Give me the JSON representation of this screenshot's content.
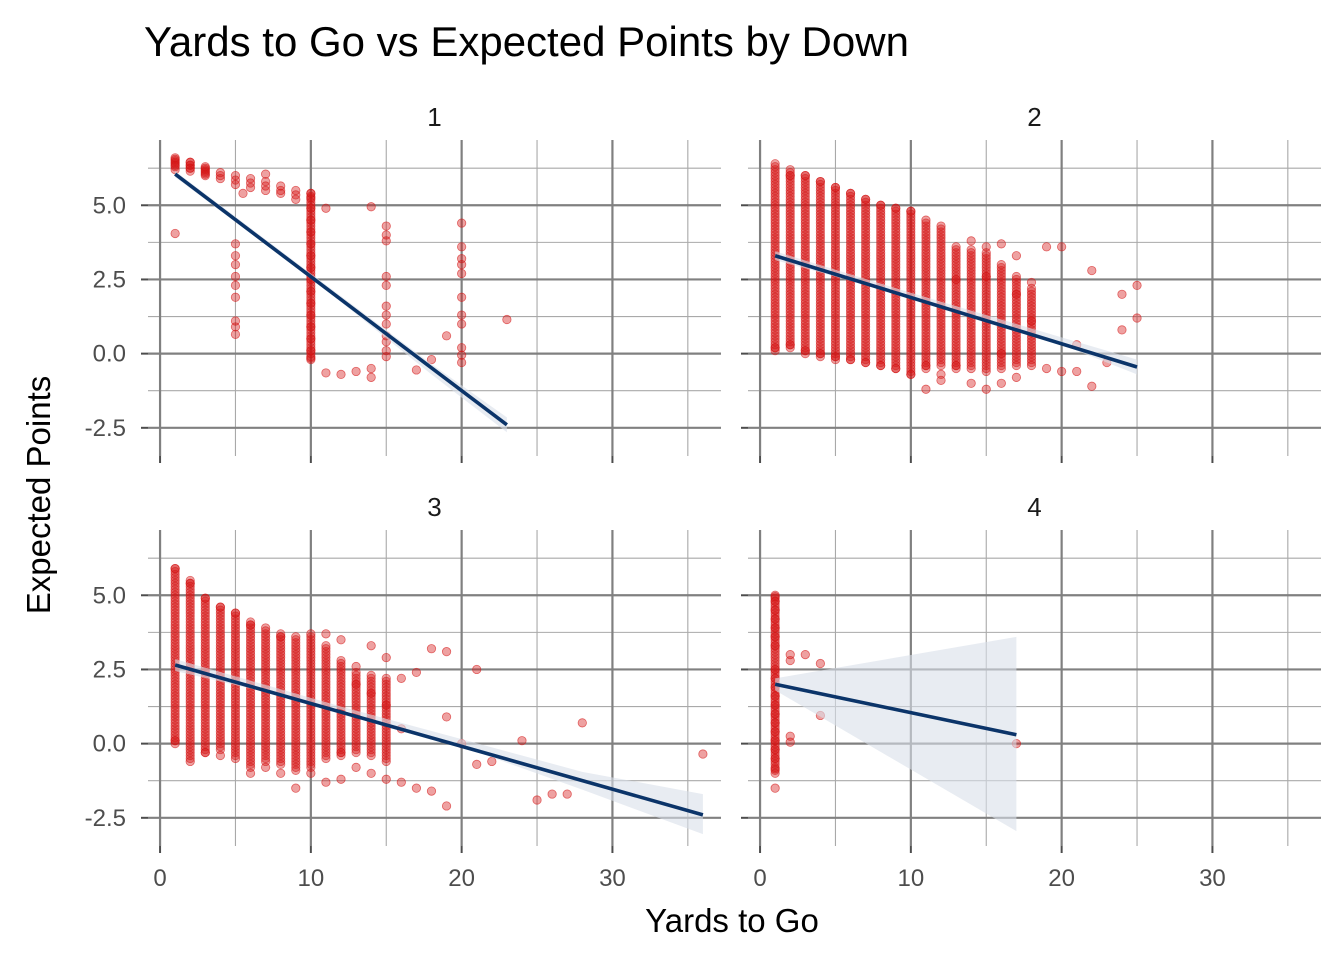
{
  "chart_data": {
    "type": "scatter",
    "title": "Yards to Go vs Expected Points by Down",
    "xlabel": "Yards to Go",
    "ylabel": "Expected Points",
    "xlim": [
      -0.8,
      37.2
    ],
    "ylim": [
      -3.45,
      7.2
    ],
    "x_breaks": [
      0,
      10,
      20,
      30
    ],
    "x_tick_labels": [
      "0",
      "10",
      "20",
      "30"
    ],
    "y_breaks": [
      -2.5,
      0,
      2.5,
      5
    ],
    "y_tick_labels": [
      "-2.5",
      "0.0",
      "2.5",
      "5.0"
    ],
    "grid": true,
    "legend": "none",
    "colors": {
      "points": "#d41414",
      "trend": "#0b3469",
      "ribbon": "#d8dfe9"
    },
    "panels": [
      {
        "label": "1",
        "trend": {
          "x0": 1,
          "y0": 6.05,
          "x1": 23,
          "y1": -2.4
        },
        "ribbon": [
          [
            1,
            5.95,
            6.15
          ],
          [
            10,
            2.55,
            2.7
          ],
          [
            18,
            -0.7,
            -0.35
          ],
          [
            23,
            -2.65,
            -2.15
          ]
        ],
        "points": [
          [
            1,
            4.05
          ],
          [
            1,
            6.55
          ],
          [
            1,
            6.45
          ],
          [
            1,
            6.35
          ],
          [
            2,
            6.45
          ],
          [
            2,
            6.35
          ],
          [
            2,
            6.25
          ],
          [
            3,
            6.25
          ],
          [
            3,
            6.15
          ],
          [
            3,
            6.05
          ],
          [
            4,
            6.1
          ],
          [
            4,
            6.0
          ],
          [
            4,
            5.9
          ],
          [
            5,
            6.0
          ],
          [
            5,
            5.85
          ],
          [
            5,
            5.7
          ],
          [
            6,
            5.9
          ],
          [
            6,
            5.75
          ],
          [
            6,
            5.6
          ],
          [
            7,
            5.8
          ],
          [
            7,
            5.65
          ],
          [
            7,
            5.5
          ],
          [
            8,
            5.65
          ],
          [
            8,
            5.5
          ],
          [
            8,
            5.4
          ],
          [
            9,
            5.5
          ],
          [
            9,
            5.35
          ],
          [
            9,
            5.2
          ],
          [
            10,
            5.4
          ],
          [
            10,
            5.25
          ],
          [
            7,
            6.05
          ],
          [
            5.5,
            5.4
          ],
          [
            5,
            3.7
          ],
          [
            5,
            3.3
          ],
          [
            5,
            3.0
          ],
          [
            5,
            2.6
          ],
          [
            5,
            2.3
          ],
          [
            5,
            1.9
          ],
          [
            5,
            1.1
          ],
          [
            5,
            0.9
          ],
          [
            5,
            0.65
          ],
          [
            10,
            4.9
          ],
          [
            10,
            4.5
          ],
          [
            10,
            4.1
          ],
          [
            10,
            3.7
          ],
          [
            10,
            3.3
          ],
          [
            10,
            2.9
          ],
          [
            10,
            2.5
          ],
          [
            10,
            2.1
          ],
          [
            10,
            1.7
          ],
          [
            10,
            1.3
          ],
          [
            10,
            0.9
          ],
          [
            10,
            0.5
          ],
          [
            10,
            0.1
          ],
          [
            10,
            -0.15
          ],
          [
            11,
            4.9
          ],
          [
            11,
            -0.65
          ],
          [
            12,
            -0.7
          ],
          [
            13,
            -0.6
          ],
          [
            14,
            4.95
          ],
          [
            14,
            -0.5
          ],
          [
            14,
            -0.8
          ],
          [
            15,
            4.3
          ],
          [
            15,
            4.0
          ],
          [
            15,
            3.8
          ],
          [
            15,
            2.6
          ],
          [
            15,
            2.3
          ],
          [
            15,
            1.6
          ],
          [
            15,
            1.3
          ],
          [
            15,
            1.0
          ],
          [
            15,
            0.6
          ],
          [
            15,
            0.4
          ],
          [
            15,
            0.1
          ],
          [
            15,
            -0.1
          ],
          [
            17,
            -0.55
          ],
          [
            18,
            -0.2
          ],
          [
            19,
            0.6
          ],
          [
            20,
            4.4
          ],
          [
            20,
            3.6
          ],
          [
            20,
            3.2
          ],
          [
            20,
            3.0
          ],
          [
            20,
            2.7
          ],
          [
            20,
            1.9
          ],
          [
            20,
            1.3
          ],
          [
            20,
            1.0
          ],
          [
            20,
            0.2
          ],
          [
            20,
            -0.05
          ],
          [
            20,
            -0.3
          ],
          [
            23,
            1.15
          ]
        ],
        "dense_columns": [
          [
            1,
            6.2,
            6.6
          ],
          [
            2,
            6.15,
            6.5
          ],
          [
            3,
            6.0,
            6.35
          ],
          [
            10,
            -0.2,
            5.4
          ]
        ]
      },
      {
        "label": "2",
        "trend": {
          "x0": 1,
          "y0": 3.3,
          "x1": 25,
          "y1": -0.45
        },
        "ribbon": [
          [
            1,
            3.15,
            3.45
          ],
          [
            10,
            1.9,
            2.05
          ],
          [
            20,
            0.3,
            0.55
          ],
          [
            25,
            -0.7,
            -0.2
          ]
        ],
        "points": [
          [
            1,
            0.2
          ],
          [
            2,
            6.0
          ],
          [
            2,
            0.3
          ],
          [
            3,
            6.0
          ],
          [
            3,
            0.1
          ],
          [
            4,
            5.8
          ],
          [
            4,
            0.0
          ],
          [
            5,
            5.6
          ],
          [
            5,
            -0.1
          ],
          [
            6,
            5.4
          ],
          [
            6,
            -0.2
          ],
          [
            7,
            5.2
          ],
          [
            7,
            -0.3
          ],
          [
            8,
            5.0
          ],
          [
            8,
            -0.4
          ],
          [
            9,
            4.9
          ],
          [
            9,
            -0.5
          ],
          [
            10,
            4.8
          ],
          [
            10,
            -0.7
          ],
          [
            11,
            4.5
          ],
          [
            11,
            -0.4
          ],
          [
            12,
            4.3
          ],
          [
            12,
            -0.7
          ],
          [
            13,
            3.6
          ],
          [
            13,
            -0.4
          ],
          [
            14,
            3.8
          ],
          [
            14,
            -0.5
          ],
          [
            15,
            3.6
          ],
          [
            15,
            -1.2
          ],
          [
            16,
            3.7
          ],
          [
            16,
            0.0
          ],
          [
            17,
            3.3
          ],
          [
            17,
            -0.8
          ],
          [
            18,
            2.4
          ],
          [
            18,
            -0.4
          ],
          [
            19,
            3.6
          ],
          [
            19,
            -0.5
          ],
          [
            20,
            3.6
          ],
          [
            20,
            -0.6
          ],
          [
            21,
            0.3
          ],
          [
            21,
            -0.6
          ],
          [
            22,
            2.8
          ],
          [
            22,
            -1.1
          ],
          [
            23,
            -0.3
          ],
          [
            24,
            2.0
          ],
          [
            24,
            0.8
          ],
          [
            25,
            2.3
          ],
          [
            25,
            1.2
          ],
          [
            11,
            -1.2
          ],
          [
            12,
            -0.9
          ],
          [
            13,
            2.5
          ],
          [
            14,
            -1.0
          ],
          [
            15,
            2.6
          ],
          [
            16,
            -1.0
          ],
          [
            17,
            2.0
          ],
          [
            18,
            1.1
          ]
        ],
        "dense_columns": [
          [
            1,
            0.1,
            6.4
          ],
          [
            2,
            0.2,
            6.2
          ],
          [
            3,
            0.0,
            6.0
          ],
          [
            4,
            -0.1,
            5.8
          ],
          [
            5,
            -0.2,
            5.6
          ],
          [
            6,
            -0.2,
            5.4
          ],
          [
            7,
            -0.3,
            5.2
          ],
          [
            8,
            -0.4,
            5.0
          ],
          [
            9,
            -0.5,
            4.9
          ],
          [
            10,
            -0.7,
            4.8
          ],
          [
            11,
            -0.5,
            4.4
          ],
          [
            12,
            -0.4,
            4.2
          ],
          [
            13,
            -0.5,
            3.5
          ],
          [
            14,
            -0.4,
            3.5
          ],
          [
            15,
            -0.6,
            3.4
          ],
          [
            16,
            -0.5,
            3.0
          ],
          [
            17,
            -0.4,
            2.6
          ],
          [
            18,
            -0.3,
            2.2
          ]
        ]
      },
      {
        "label": "3",
        "trend": {
          "x0": 1,
          "y0": 2.65,
          "x1": 36,
          "y1": -2.4
        },
        "ribbon": [
          [
            1,
            2.45,
            2.85
          ],
          [
            12,
            1.15,
            1.25
          ],
          [
            20,
            -0.1,
            0.15
          ],
          [
            28,
            -1.55,
            -0.95
          ],
          [
            36,
            -3.05,
            -1.7
          ]
        ],
        "points": [
          [
            1,
            5.9
          ],
          [
            1,
            0.1
          ],
          [
            2,
            5.4
          ],
          [
            2,
            -0.6
          ],
          [
            3,
            4.9
          ],
          [
            3,
            -0.3
          ],
          [
            4,
            4.6
          ],
          [
            4,
            -0.4
          ],
          [
            5,
            4.4
          ],
          [
            5,
            -0.5
          ],
          [
            6,
            4.0
          ],
          [
            6,
            -1.0
          ],
          [
            7,
            3.9
          ],
          [
            7,
            -0.8
          ],
          [
            8,
            3.6
          ],
          [
            8,
            -1.0
          ],
          [
            9,
            3.6
          ],
          [
            9,
            -1.5
          ],
          [
            10,
            3.7
          ],
          [
            10,
            -1.0
          ],
          [
            11,
            3.7
          ],
          [
            11,
            -1.3
          ],
          [
            12,
            3.5
          ],
          [
            12,
            -1.2
          ],
          [
            13,
            2.6
          ],
          [
            13,
            -0.8
          ],
          [
            14,
            3.3
          ],
          [
            14,
            -1.0
          ],
          [
            15,
            2.9
          ],
          [
            15,
            -1.2
          ],
          [
            16,
            0.5
          ],
          [
            16,
            -1.3
          ],
          [
            17,
            -1.5
          ],
          [
            18,
            3.2
          ],
          [
            18,
            -1.6
          ],
          [
            19,
            3.1
          ],
          [
            19,
            -2.1
          ],
          [
            20,
            0.0
          ],
          [
            21,
            2.5
          ],
          [
            21,
            -0.7
          ],
          [
            22,
            -0.6
          ],
          [
            24,
            0.1
          ],
          [
            25,
            -1.9
          ],
          [
            26,
            -1.7
          ],
          [
            27,
            -1.7
          ],
          [
            28,
            0.7
          ],
          [
            36,
            -0.35
          ],
          [
            13,
            2.0
          ],
          [
            15,
            1.3
          ],
          [
            17,
            2.4
          ],
          [
            19,
            0.9
          ],
          [
            14,
            1.7
          ],
          [
            16,
            2.2
          ],
          [
            12,
            -0.3
          ]
        ],
        "dense_columns": [
          [
            1,
            0.0,
            5.9
          ],
          [
            2,
            -0.5,
            5.5
          ],
          [
            3,
            -0.3,
            4.9
          ],
          [
            4,
            -0.2,
            4.6
          ],
          [
            5,
            -0.4,
            4.4
          ],
          [
            6,
            -0.8,
            4.1
          ],
          [
            7,
            -0.6,
            3.8
          ],
          [
            8,
            -0.7,
            3.7
          ],
          [
            9,
            -0.9,
            3.5
          ],
          [
            10,
            -0.8,
            3.6
          ],
          [
            11,
            -0.5,
            3.3
          ],
          [
            12,
            -0.4,
            2.8
          ],
          [
            13,
            -0.3,
            2.4
          ],
          [
            14,
            -0.4,
            2.3
          ],
          [
            15,
            -0.6,
            2.2
          ]
        ]
      },
      {
        "label": "4",
        "trend": {
          "x0": 1,
          "y0": 2.0,
          "x1": 17,
          "y1": 0.3
        },
        "ribbon": [
          [
            1,
            1.8,
            2.2
          ],
          [
            17,
            -2.95,
            3.6
          ]
        ],
        "points": [
          [
            1,
            4.95
          ],
          [
            1,
            4.8
          ],
          [
            1,
            4.5
          ],
          [
            1,
            4.2
          ],
          [
            1,
            3.9
          ],
          [
            1,
            3.6
          ],
          [
            1,
            3.3
          ],
          [
            1,
            2.5
          ],
          [
            1,
            2.2
          ],
          [
            1,
            1.9
          ],
          [
            1,
            1.6
          ],
          [
            1,
            1.3
          ],
          [
            1,
            1.0
          ],
          [
            1,
            0.7
          ],
          [
            1,
            0.4
          ],
          [
            1,
            0.1
          ],
          [
            1,
            -0.2
          ],
          [
            1,
            -0.5
          ],
          [
            1,
            -0.85
          ],
          [
            1,
            -1.5
          ],
          [
            2,
            3.0
          ],
          [
            2,
            2.8
          ],
          [
            2,
            0.25
          ],
          [
            2,
            0.05
          ],
          [
            3,
            3.0
          ],
          [
            4,
            2.7
          ],
          [
            4,
            0.95
          ],
          [
            17,
            0.0
          ]
        ],
        "dense_columns": [
          [
            1,
            -1.0,
            5.0
          ]
        ]
      }
    ]
  }
}
